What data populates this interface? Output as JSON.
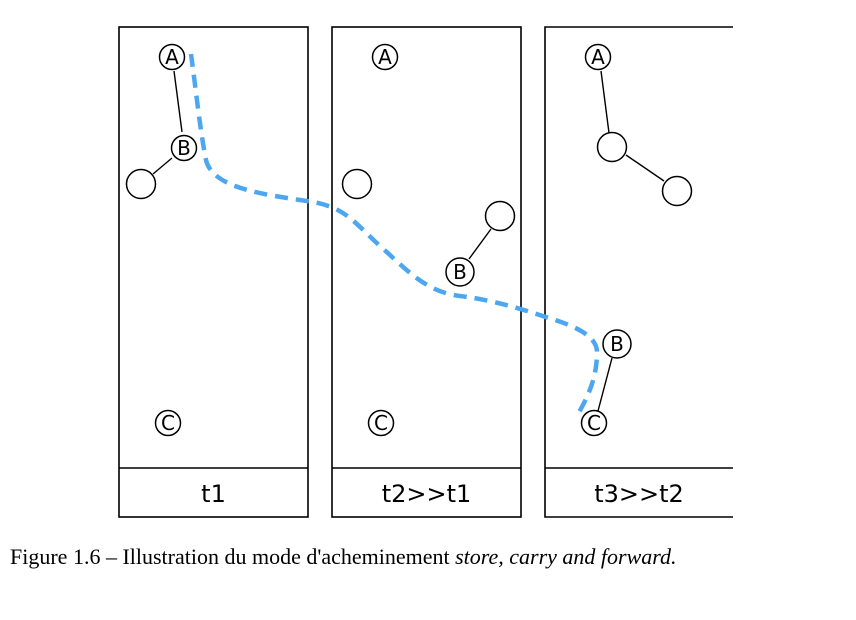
{
  "panels": [
    {
      "label": "t1"
    },
    {
      "label": "t2>>t1"
    },
    {
      "label": "t3>>t2"
    }
  ],
  "nodes": {
    "a_label": "A",
    "b_label": "B",
    "c_label": "C"
  },
  "caption": {
    "prefix": "Figure 1.6 – Illustration du mode d'acheminement ",
    "emphasis": "store, carry and forward."
  },
  "colors": {
    "route": "#4da6f0",
    "line": "#000000",
    "background": "#ffffff"
  }
}
